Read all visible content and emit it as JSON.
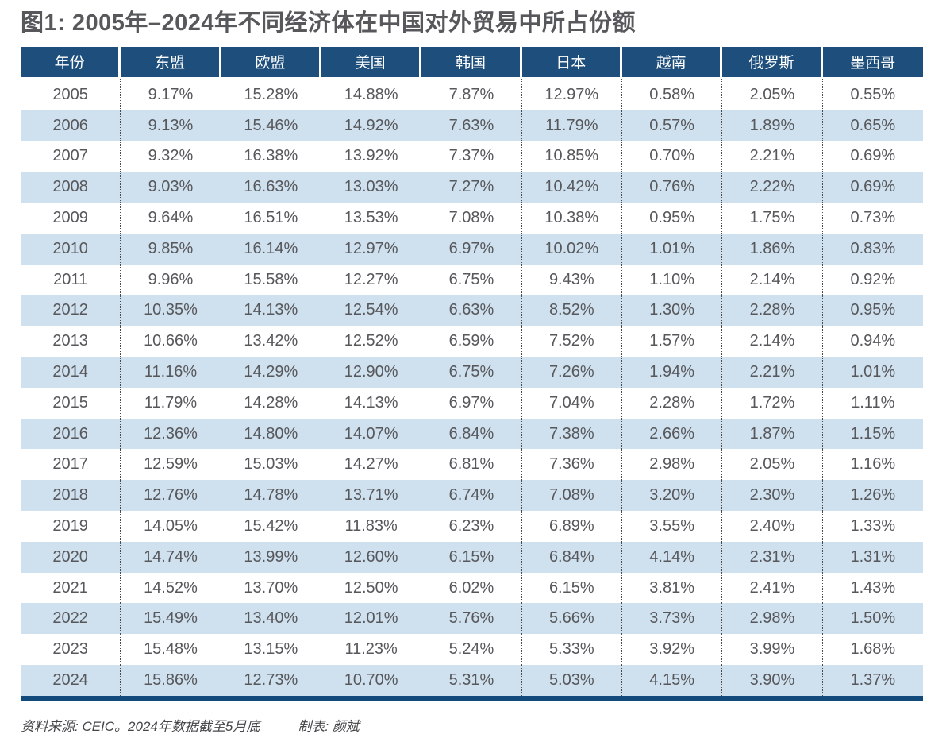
{
  "title": "图1: 2005年–2024年不同经济体在中国对外贸易中所占份额",
  "chart_data": {
    "type": "table",
    "title": "图1: 2005年–2024年不同经济体在中国对外贸易中所占份额",
    "columns": [
      "年份",
      "东盟",
      "欧盟",
      "美国",
      "韩国",
      "日本",
      "越南",
      "俄罗斯",
      "墨西哥"
    ],
    "rows": [
      [
        "2005",
        "9.17%",
        "15.28%",
        "14.88%",
        "7.87%",
        "12.97%",
        "0.58%",
        "2.05%",
        "0.55%"
      ],
      [
        "2006",
        "9.13%",
        "15.46%",
        "14.92%",
        "7.63%",
        "11.79%",
        "0.57%",
        "1.89%",
        "0.65%"
      ],
      [
        "2007",
        "9.32%",
        "16.38%",
        "13.92%",
        "7.37%",
        "10.85%",
        "0.70%",
        "2.21%",
        "0.69%"
      ],
      [
        "2008",
        "9.03%",
        "16.63%",
        "13.03%",
        "7.27%",
        "10.42%",
        "0.76%",
        "2.22%",
        "0.69%"
      ],
      [
        "2009",
        "9.64%",
        "16.51%",
        "13.53%",
        "7.08%",
        "10.38%",
        "0.95%",
        "1.75%",
        "0.73%"
      ],
      [
        "2010",
        "9.85%",
        "16.14%",
        "12.97%",
        "6.97%",
        "10.02%",
        "1.01%",
        "1.86%",
        "0.83%"
      ],
      [
        "2011",
        "9.96%",
        "15.58%",
        "12.27%",
        "6.75%",
        "9.43%",
        "1.10%",
        "2.14%",
        "0.92%"
      ],
      [
        "2012",
        "10.35%",
        "14.13%",
        "12.54%",
        "6.63%",
        "8.52%",
        "1.30%",
        "2.28%",
        "0.95%"
      ],
      [
        "2013",
        "10.66%",
        "13.42%",
        "12.52%",
        "6.59%",
        "7.52%",
        "1.57%",
        "2.14%",
        "0.94%"
      ],
      [
        "2014",
        "11.16%",
        "14.29%",
        "12.90%",
        "6.75%",
        "7.26%",
        "1.94%",
        "2.21%",
        "1.01%"
      ],
      [
        "2015",
        "11.79%",
        "14.28%",
        "14.13%",
        "6.97%",
        "7.04%",
        "2.28%",
        "1.72%",
        "1.11%"
      ],
      [
        "2016",
        "12.36%",
        "14.80%",
        "14.07%",
        "6.84%",
        "7.38%",
        "2.66%",
        "1.87%",
        "1.15%"
      ],
      [
        "2017",
        "12.59%",
        "15.03%",
        "14.27%",
        "6.81%",
        "7.36%",
        "2.98%",
        "2.05%",
        "1.16%"
      ],
      [
        "2018",
        "12.76%",
        "14.78%",
        "13.71%",
        "6.74%",
        "7.08%",
        "3.20%",
        "2.30%",
        "1.26%"
      ],
      [
        "2019",
        "14.05%",
        "15.42%",
        "11.83%",
        "6.23%",
        "6.89%",
        "3.55%",
        "2.40%",
        "1.33%"
      ],
      [
        "2020",
        "14.74%",
        "13.99%",
        "12.60%",
        "6.15%",
        "6.84%",
        "4.14%",
        "2.31%",
        "1.31%"
      ],
      [
        "2021",
        "14.52%",
        "13.70%",
        "12.50%",
        "6.02%",
        "6.15%",
        "3.81%",
        "2.41%",
        "1.43%"
      ],
      [
        "2022",
        "15.49%",
        "13.40%",
        "12.01%",
        "5.76%",
        "5.66%",
        "3.73%",
        "2.98%",
        "1.50%"
      ],
      [
        "2023",
        "15.48%",
        "13.15%",
        "11.23%",
        "5.24%",
        "5.33%",
        "3.92%",
        "3.99%",
        "1.68%"
      ],
      [
        "2024",
        "15.86%",
        "12.73%",
        "10.70%",
        "5.31%",
        "5.03%",
        "4.15%",
        "3.90%",
        "1.37%"
      ]
    ]
  },
  "footer": {
    "source": "资料来源: CEIC。2024年数据截至5月底",
    "tabulator": "制表: 颜斌"
  },
  "colors": {
    "header_bg": "#1d4e7c",
    "row_alt_bg": "#cfe0ee",
    "bottom_bar": "#134a7c",
    "title_text": "#57585c",
    "cell_text": "#57585c",
    "header_text": "#ffffff",
    "footer_text": "#454649"
  }
}
